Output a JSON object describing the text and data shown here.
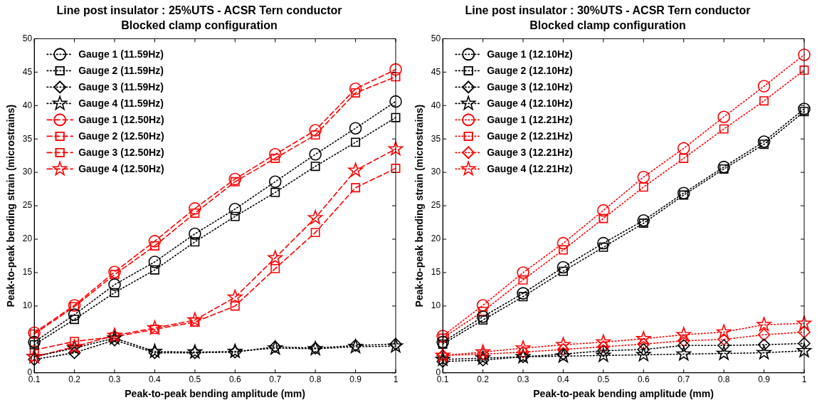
{
  "chart_data": [
    {
      "type": "line",
      "title": "Line post insulator : 25%UTS - ACSR Tern conductor",
      "subtitle": "Blocked clamp configuration",
      "xlabel": "Peak-to-peak bending amplitude (mm)",
      "ylabel": "Peak-to-peak bending strain (microstrains)",
      "x": [
        0.1,
        0.2,
        0.3,
        0.4,
        0.5,
        0.6,
        0.7,
        0.8,
        0.9,
        1
      ],
      "xlim": [
        0.1,
        1
      ],
      "xticks": [
        0.1,
        0.2,
        0.3,
        0.4,
        0.5,
        0.6,
        0.7,
        0.8,
        0.9,
        1
      ],
      "ylim": [
        0,
        50
      ],
      "yticks": [
        0,
        10,
        15,
        20,
        25,
        30,
        35,
        40,
        45,
        50
      ],
      "grid": false,
      "legend": "top left",
      "series": [
        {
          "name": "Gauge 1 (11.59Hz)",
          "color": "#000000",
          "marker": "circle",
          "line_style": "dotted",
          "values": [
            4.6,
            8.7,
            13.2,
            16.6,
            20.8,
            24.5,
            28.6,
            32.7,
            36.6,
            40.6
          ]
        },
        {
          "name": "Gauge 2 (11.59Hz)",
          "color": "#000000",
          "marker": "square",
          "line_style": "dotted",
          "values": [
            4.2,
            8.0,
            12.0,
            15.4,
            19.6,
            23.4,
            27.0,
            30.9,
            34.5,
            38.2
          ]
        },
        {
          "name": "Gauge 3 (11.59Hz)",
          "color": "#000000",
          "marker": "diamond",
          "line_style": "dotted",
          "values": [
            2.0,
            3.0,
            4.9,
            3.0,
            3.0,
            3.1,
            3.9,
            3.7,
            4.1,
            4.3
          ]
        },
        {
          "name": "Gauge 4 (11.59Hz)",
          "color": "#000000",
          "marker": "star",
          "line_style": "dotted",
          "values": [
            2.4,
            3.7,
            5.2,
            3.2,
            3.1,
            3.2,
            3.7,
            3.6,
            3.9,
            4.0
          ]
        },
        {
          "name": "Gauge 1 (12.50Hz)",
          "color": "#ff0000",
          "marker": "circle",
          "line_style": "dashed",
          "values": [
            6.0,
            10.1,
            15.1,
            19.7,
            24.6,
            29.0,
            32.7,
            36.3,
            42.5,
            45.4
          ]
        },
        {
          "name": "Gauge 2 (12.50Hz)",
          "color": "#ff0000",
          "marker": "square",
          "line_style": "dashed",
          "values": [
            3.4,
            4.7,
            5.4,
            6.5,
            7.6,
            10.0,
            15.6,
            21.0,
            27.7,
            30.6
          ]
        },
        {
          "name": "Gauge 3 (12.50Hz)",
          "color": "#ff0000",
          "marker": "square",
          "line_style": "dashed",
          "values": [
            5.8,
            9.9,
            14.7,
            19.0,
            23.9,
            28.6,
            32.1,
            35.6,
            41.9,
            44.3
          ]
        },
        {
          "name": "Gauge 4 (12.50Hz)",
          "color": "#ff0000",
          "marker": "star",
          "line_style": "dashed",
          "values": [
            2.4,
            3.9,
            5.6,
            6.7,
            7.9,
            11.3,
            17.2,
            23.2,
            30.3,
            33.5
          ]
        }
      ]
    },
    {
      "type": "line",
      "title": "Line post insulator : 30%UTS - ACSR Tern conductor",
      "subtitle": "Blocked clamp configuration",
      "xlabel": "Peak-to-peak bending amplitude (mm)",
      "ylabel": "Peak-to-peak bending strain (microstrains)",
      "x": [
        0.1,
        0.2,
        0.3,
        0.4,
        0.5,
        0.6,
        0.7,
        0.8,
        0.9,
        1
      ],
      "xlim": [
        0.1,
        1
      ],
      "xticks": [
        0.1,
        0.2,
        0.3,
        0.4,
        0.5,
        0.6,
        0.7,
        0.8,
        0.9,
        1
      ],
      "ylim": [
        0,
        50
      ],
      "yticks": [
        0,
        10,
        15,
        20,
        25,
        30,
        35,
        40,
        45,
        50
      ],
      "grid": false,
      "legend": "top left",
      "series": [
        {
          "name": "Gauge 1 (12.10Hz)",
          "color": "#000000",
          "marker": "circle",
          "line_style": "dotted",
          "values": [
            4.6,
            8.4,
            11.9,
            15.8,
            19.4,
            22.8,
            26.9,
            30.8,
            34.6,
            39.5
          ]
        },
        {
          "name": "Gauge 2 (12.10Hz)",
          "color": "#000000",
          "marker": "square",
          "line_style": "dotted",
          "values": [
            4.3,
            7.9,
            11.4,
            15.2,
            18.8,
            22.4,
            26.6,
            30.5,
            34.2,
            39.1
          ]
        },
        {
          "name": "Gauge 3 (12.10Hz)",
          "color": "#000000",
          "marker": "diamond",
          "line_style": "dotted",
          "values": [
            1.7,
            1.9,
            2.4,
            2.8,
            3.3,
            3.5,
            4.1,
            4.1,
            4.2,
            4.4
          ]
        },
        {
          "name": "Gauge 4 (12.10Hz)",
          "color": "#000000",
          "marker": "star",
          "line_style": "dotted",
          "values": [
            2.0,
            2.2,
            2.4,
            2.5,
            2.6,
            2.7,
            2.8,
            2.9,
            3.0,
            3.3
          ]
        },
        {
          "name": "Gauge 1 (12.21Hz)",
          "color": "#ff0000",
          "marker": "circle",
          "line_style": "dotted",
          "values": [
            5.5,
            10.1,
            15.0,
            19.4,
            24.3,
            29.3,
            33.6,
            38.3,
            42.9,
            47.6
          ]
        },
        {
          "name": "Gauge 2 (12.21Hz)",
          "color": "#ff0000",
          "marker": "square",
          "line_style": "dotted",
          "values": [
            5.2,
            9.2,
            13.9,
            18.4,
            23.1,
            27.8,
            32.1,
            36.5,
            40.7,
            45.3
          ]
        },
        {
          "name": "Gauge 3 (12.21Hz)",
          "color": "#ff0000",
          "marker": "diamond",
          "line_style": "dotted",
          "values": [
            2.6,
            2.8,
            3.1,
            3.5,
            3.9,
            4.3,
            4.8,
            5.0,
            5.7,
            6.1
          ]
        },
        {
          "name": "Gauge 4 (12.21Hz)",
          "color": "#ff0000",
          "marker": "star",
          "line_style": "dotted",
          "values": [
            2.6,
            3.1,
            3.7,
            4.2,
            4.6,
            5.1,
            5.7,
            6.1,
            7.2,
            7.4
          ]
        }
      ]
    }
  ]
}
